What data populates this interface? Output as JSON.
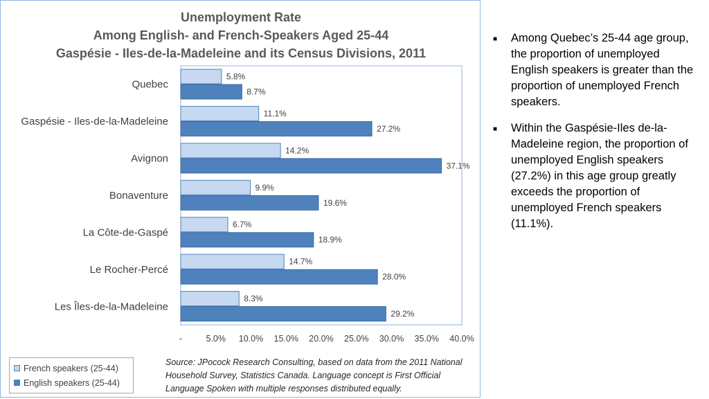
{
  "chart_data": {
    "type": "bar",
    "orientation": "horizontal",
    "title": [
      "Unemployment Rate",
      "Among English- and French-Speakers Aged 25-44",
      "Gaspésie - Iles-de-la-Madeleine and its Census Divisions, 2011"
    ],
    "categories": [
      "Quebec",
      "Gaspésie - Iles-de-la-Madeleine",
      "Avignon",
      "Bonaventure",
      "La Côte-de-Gaspé",
      "Le Rocher-Percé",
      "Les Îles-de-la-Madeleine"
    ],
    "series": [
      {
        "name": "French speakers (25-44)",
        "values": [
          5.8,
          11.1,
          14.2,
          9.9,
          6.7,
          14.7,
          8.3
        ],
        "labels": [
          "5.8%",
          "11.1%",
          "14.2%",
          "9.9%",
          "6.7%",
          "14.7%",
          "8.3%"
        ],
        "color": "#c6d9f1",
        "stroke": "#4f81bd"
      },
      {
        "name": "English speakers (25-44)",
        "values": [
          8.7,
          27.2,
          37.1,
          19.6,
          18.9,
          28.0,
          29.2
        ],
        "labels": [
          "8.7%",
          "27.2%",
          "37.1%",
          "19.6%",
          "18.9%",
          "28.0%",
          "29.2%"
        ],
        "color": "#4f81bd",
        "stroke": "#3b6aa3"
      }
    ],
    "xticks": [
      "-",
      "5.0%",
      "10.0%",
      "15.0%",
      "20.0%",
      "25.0%",
      "30.0%",
      "35.0%",
      "40.0%"
    ],
    "xlim": [
      0,
      40
    ],
    "grid": false,
    "legend_position": "bottom-left"
  },
  "source": "Source: JPocock Research Consulting, based on data from the 2011 National Household Survey, Statistics Canada. Language concept is First Official Language Spoken with multiple responses distributed equally.",
  "notes": [
    "Among Quebec’s 25-44 age group, the proportion of unemployed English speakers is greater than the proportion of unemployed French speakers.",
    "Within the Gaspésie-Iles de-la-Madeleine region, the proportion of unemployed English speakers (27.2%) in this age group greatly exceeds the proportion of unemployed French speakers (11.1%)."
  ],
  "bullet_icon": "square-bullet"
}
